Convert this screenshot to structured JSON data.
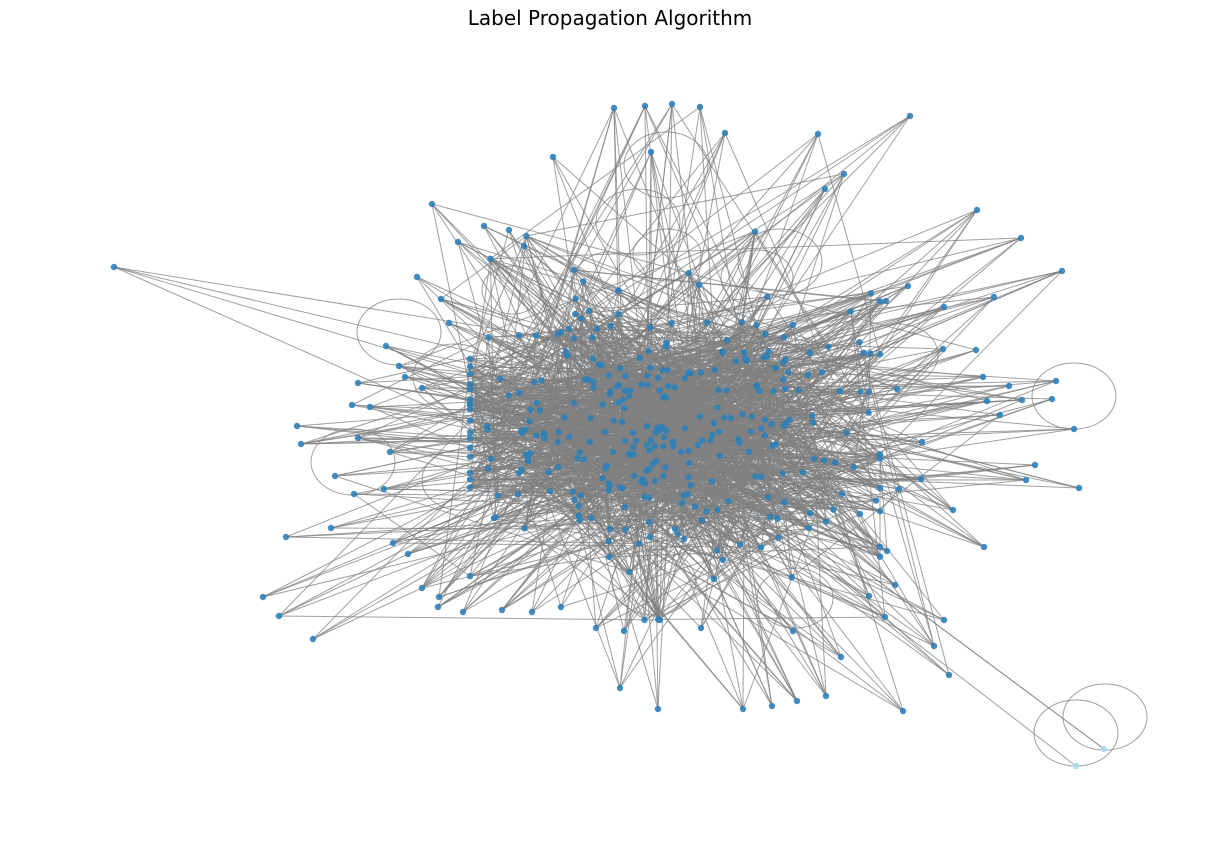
{
  "title": "Label Propagation Algorithm",
  "graph": {
    "communities": 2,
    "colors": {
      "edge": "#808080",
      "community_main": "#2e7fb8",
      "community_small": "#a6dcef"
    }
  }
}
